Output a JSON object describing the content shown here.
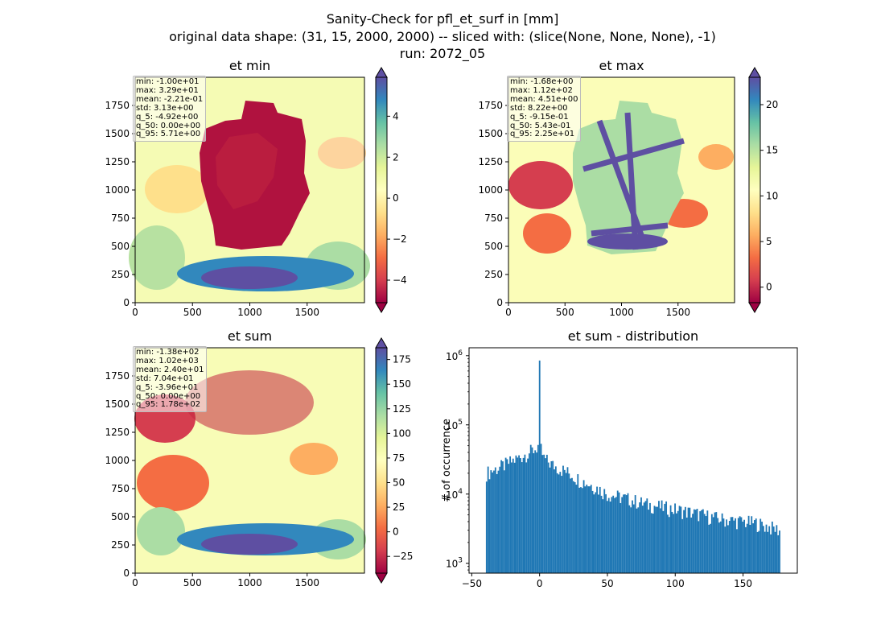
{
  "figure": {
    "title_lines": [
      "Sanity-Check for pfl_et_surf in [mm]",
      "original data shape: (31, 15, 2000, 2000) -- sliced with: (slice(None, None, None), -1)",
      "run: 2072_05"
    ]
  },
  "colors": {
    "cmap_spectral": [
      "#9e0142",
      "#d53e4f",
      "#f46d43",
      "#fdae61",
      "#fee08b",
      "#ffffbf",
      "#e6f598",
      "#abdda4",
      "#66c2a5",
      "#3288bd",
      "#5e4fa2"
    ],
    "histogram_bar": "#1f77b4"
  },
  "chart_data": [
    {
      "type": "heatmap",
      "id": "et_min",
      "title": "et min",
      "xlim": [
        0,
        2000
      ],
      "ylim": [
        0,
        2000
      ],
      "xticks": [
        0,
        500,
        1000,
        1500
      ],
      "yticks": [
        0,
        250,
        500,
        750,
        1000,
        1250,
        1500,
        1750
      ],
      "colorbar": {
        "vmin": -5.1,
        "vmax": 5.9,
        "ticks": [
          -4,
          -2,
          0,
          2,
          4
        ],
        "tick_labels": [
          "−4",
          "−2",
          "0",
          "2",
          "4"
        ],
        "extend": "both"
      },
      "stats": [
        "min: -1.00e+01",
        "max: 3.29e+01",
        "mean: -2.21e-01",
        "std: 3.13e+00",
        "q_5: -4.92e+00",
        "q_50: 0.00e+00",
        "q_95: 5.71e+00"
      ]
    },
    {
      "type": "heatmap",
      "id": "et_max",
      "title": "et max",
      "xlim": [
        0,
        2000
      ],
      "ylim": [
        0,
        2000
      ],
      "xticks": [
        0,
        500,
        1000,
        1500
      ],
      "yticks": [
        0,
        250,
        500,
        750,
        1000,
        1250,
        1500,
        1750
      ],
      "colorbar": {
        "vmin": -1.7,
        "vmax": 23,
        "ticks": [
          0,
          5,
          10,
          15,
          20
        ],
        "tick_labels": [
          "0",
          "5",
          "10",
          "15",
          "20"
        ],
        "extend": "both"
      },
      "stats": [
        "min: -1.68e+00",
        "max: 1.12e+02",
        "mean: 4.51e+00",
        "std: 8.22e+00",
        "q_5: -9.15e-01",
        "q_50: 5.43e-01",
        "q_95: 2.25e+01"
      ]
    },
    {
      "type": "heatmap",
      "id": "et_sum",
      "title": "et sum",
      "xlim": [
        0,
        2000
      ],
      "ylim": [
        0,
        2000
      ],
      "xticks": [
        0,
        500,
        1000,
        1500
      ],
      "yticks": [
        0,
        250,
        500,
        750,
        1000,
        1250,
        1500,
        1750
      ],
      "colorbar": {
        "vmin": -42,
        "vmax": 187,
        "ticks": [
          -25,
          0,
          25,
          50,
          75,
          100,
          125,
          150,
          175
        ],
        "tick_labels": [
          "−25",
          "0",
          "25",
          "50",
          "75",
          "100",
          "125",
          "150",
          "175"
        ],
        "extend": "both"
      },
      "stats": [
        "min: -1.38e+02",
        "max: 1.02e+03",
        "mean: 2.40e+01",
        "std: 7.04e+01",
        "q_5: -3.96e+01",
        "q_50: 0.00e+00",
        "q_95: 1.78e+02"
      ]
    },
    {
      "type": "bar",
      "id": "et_sum_distribution",
      "title": "et sum - distribution",
      "ylabel": "# of occurrence",
      "xlabel": "",
      "yscale": "log",
      "xlim": [
        -52,
        190
      ],
      "ylim": [
        720,
        1300000
      ],
      "xticks": [
        -50,
        0,
        50,
        100,
        150
      ],
      "xtick_labels": [
        "−50",
        "0",
        "50",
        "100",
        "150"
      ],
      "yticks": [
        1000,
        10000,
        100000,
        1000000
      ],
      "ytick_labels": [
        [
          "10",
          "3"
        ],
        [
          "10",
          "4"
        ],
        [
          "10",
          "5"
        ],
        [
          "10",
          "6"
        ]
      ],
      "bins": {
        "start": -39.6,
        "end": 177.5,
        "count": 200
      },
      "anchors": [
        [
          -39.6,
          20000
        ],
        [
          -30,
          24000
        ],
        [
          -20,
          30000
        ],
        [
          -10,
          38000
        ],
        [
          -3,
          45000
        ],
        [
          0,
          52000
        ],
        [
          3,
          33000
        ],
        [
          10,
          26000
        ],
        [
          20,
          21000
        ],
        [
          30,
          16000
        ],
        [
          40,
          13000
        ],
        [
          50,
          10000
        ],
        [
          60,
          9000
        ],
        [
          70,
          8000
        ],
        [
          80,
          7000
        ],
        [
          90,
          6500
        ],
        [
          100,
          6000
        ],
        [
          110,
          5500
        ],
        [
          120,
          5000
        ],
        [
          130,
          4500
        ],
        [
          140,
          4200
        ],
        [
          150,
          4000
        ],
        [
          160,
          3800
        ],
        [
          170,
          3300
        ],
        [
          177.5,
          3000
        ]
      ],
      "peak": {
        "x": 0,
        "value": 850000
      }
    }
  ]
}
